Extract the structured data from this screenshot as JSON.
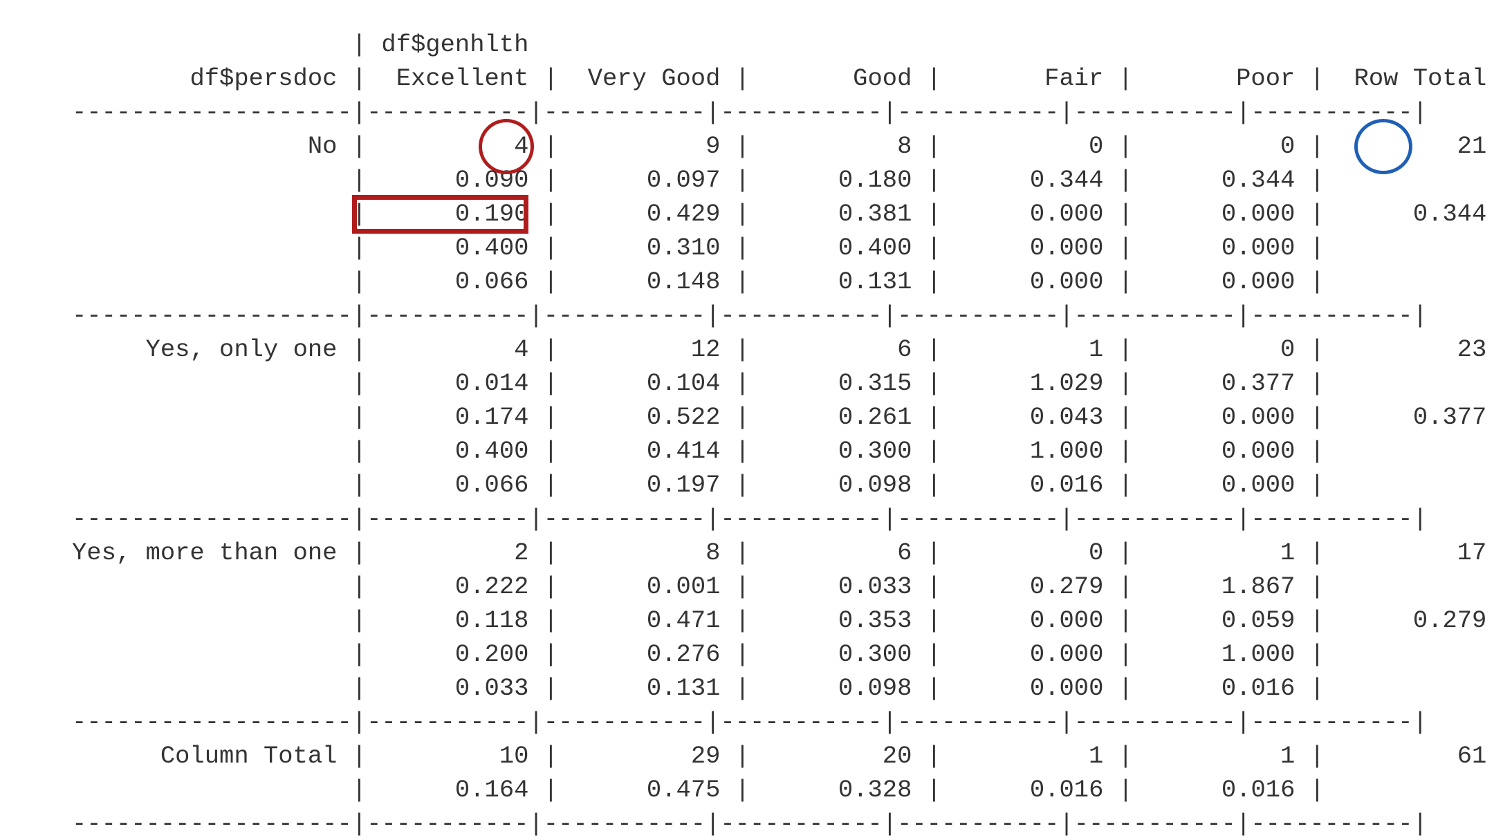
{
  "header": {
    "column_variable": "df$genhlth",
    "row_variable": "df$persdoc",
    "columns": [
      "Excellent",
      "Very Good",
      "Good",
      "Fair",
      "Poor",
      "Row Total"
    ]
  },
  "table": {
    "rows": [
      {
        "label": "No",
        "cells": [
          [
            "4",
            "0.090",
            "0.190",
            "0.400",
            "0.066"
          ],
          [
            "9",
            "0.097",
            "0.429",
            "0.310",
            "0.148"
          ],
          [
            "8",
            "0.180",
            "0.381",
            "0.400",
            "0.131"
          ],
          [
            "0",
            "0.344",
            "0.000",
            "0.000",
            "0.000"
          ],
          [
            "0",
            "0.344",
            "0.000",
            "0.000",
            "0.000"
          ]
        ],
        "row_total": {
          "count": "21",
          "proportion": "0.344"
        }
      },
      {
        "label": "Yes, only one",
        "cells": [
          [
            "4",
            "0.014",
            "0.174",
            "0.400",
            "0.066"
          ],
          [
            "12",
            "0.104",
            "0.522",
            "0.414",
            "0.197"
          ],
          [
            "6",
            "0.315",
            "0.261",
            "0.300",
            "0.098"
          ],
          [
            "1",
            "1.029",
            "0.043",
            "1.000",
            "0.016"
          ],
          [
            "0",
            "0.377",
            "0.000",
            "0.000",
            "0.000"
          ]
        ],
        "row_total": {
          "count": "23",
          "proportion": "0.377"
        }
      },
      {
        "label": "Yes, more than one",
        "cells": [
          [
            "2",
            "0.222",
            "0.118",
            "0.200",
            "0.033"
          ],
          [
            "8",
            "0.001",
            "0.471",
            "0.276",
            "0.131"
          ],
          [
            "6",
            "0.033",
            "0.353",
            "0.300",
            "0.098"
          ],
          [
            "0",
            "0.279",
            "0.000",
            "0.000",
            "0.000"
          ],
          [
            "1",
            "1.867",
            "0.059",
            "1.000",
            "0.016"
          ]
        ],
        "row_total": {
          "count": "17",
          "proportion": "0.279"
        }
      }
    ],
    "column_total": {
      "label": "Column Total",
      "cells": [
        [
          "10",
          "0.164"
        ],
        [
          "29",
          "0.475"
        ],
        [
          "20",
          "0.328"
        ],
        [
          "1",
          "0.016"
        ],
        [
          "1",
          "0.016"
        ]
      ],
      "row_total": "61"
    }
  }
}
